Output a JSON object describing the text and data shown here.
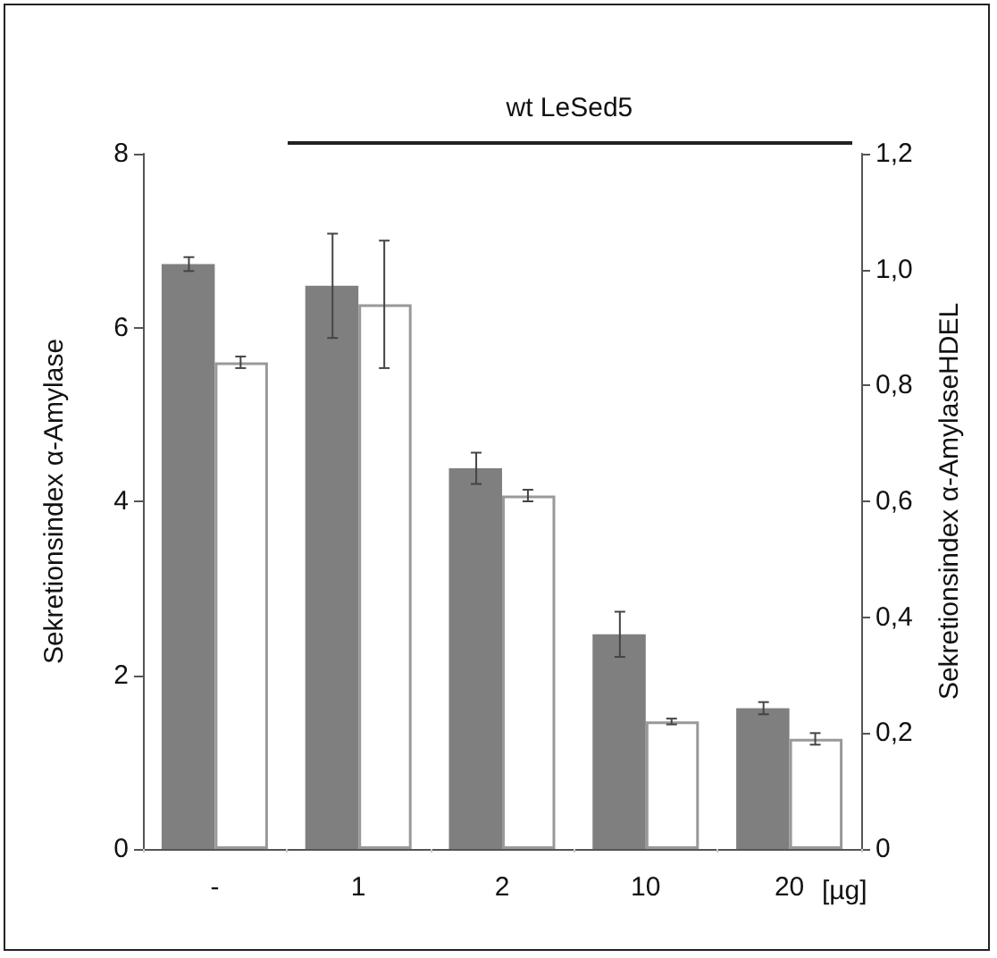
{
  "chart_data": {
    "type": "bar",
    "categories": [
      "-",
      "1",
      "2",
      "10",
      "20"
    ],
    "xlabel": "[µg]",
    "ylabel": "Sekretionsindex α-Amylase",
    "y2label": "Sekretionsindex α-AmylaseHDEL",
    "annotations": [
      "wt LeSed5"
    ],
    "series": [
      {
        "color": "#7f7f7f",
        "values": [
          6.73,
          6.48,
          4.38,
          2.47,
          1.62
        ],
        "errors": [
          0.08,
          0.6,
          0.18,
          0.26,
          0.07
        ]
      },
      {
        "color": "#ffffff",
        "axis": "y2",
        "values": [
          0.84,
          0.94,
          0.61,
          0.22,
          0.19
        ],
        "errors": [
          0.01,
          0.11,
          0.01,
          0.005,
          0.01
        ]
      }
    ],
    "ylim": [
      0,
      8
    ],
    "yticks": [
      0,
      2,
      4,
      6,
      8
    ],
    "y2lim": [
      0,
      1.2
    ],
    "y2ticks": [
      0,
      {
        "value": 0.2,
        "label": "0,2"
      },
      {
        "value": 0.4,
        "label": "0,4"
      },
      {
        "value": 0.6,
        "label": "0,6"
      },
      {
        "value": 0.8,
        "label": "0,8"
      },
      {
        "value": 1.0,
        "label": "1,0"
      },
      {
        "value": 1.2,
        "label": "1,2"
      }
    ],
    "tick_labels": true
  }
}
